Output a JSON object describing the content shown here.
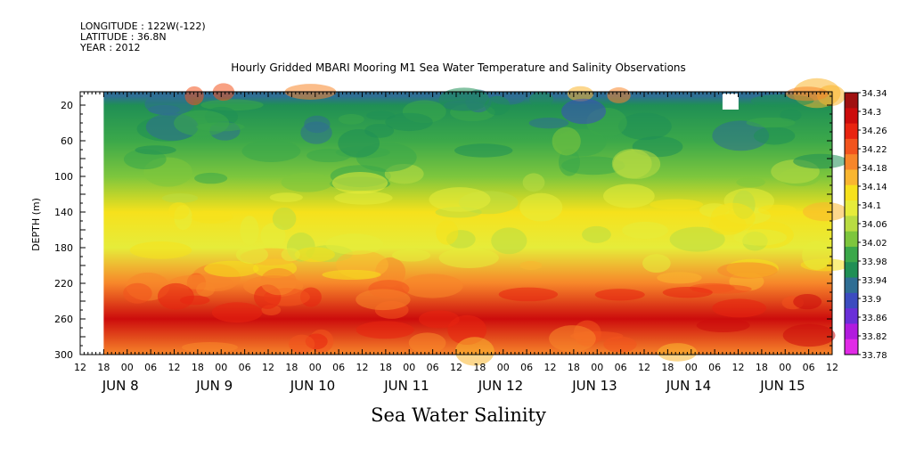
{
  "meta": {
    "longitude": "LONGITUDE : 122W(-122)",
    "latitude": "LATITUDE : 36.8N",
    "year": "YEAR : 2012"
  },
  "chart_data": {
    "type": "heatmap",
    "title": "Hourly Gridded MBARI Mooring M1 Sea Water Temperature and Salinity Observations",
    "bottom_title": "Sea Water Salinity",
    "ylabel": "DEPTH (m)",
    "ylim": [
      300,
      5
    ],
    "y_ticks": [
      20,
      60,
      100,
      140,
      180,
      220,
      260,
      300
    ],
    "x_range_hours": "Jun 7 12:00 to Jun 15 12:00, 2012",
    "x_hour_ticks": [
      "12",
      "18",
      "00",
      "06",
      "12",
      "18",
      "00",
      "06",
      "12",
      "18",
      "00",
      "06",
      "12",
      "18",
      "00",
      "06",
      "12",
      "18",
      "00",
      "06",
      "12",
      "18",
      "00",
      "06",
      "12",
      "18",
      "00",
      "06",
      "12",
      "18",
      "00",
      "06",
      "12"
    ],
    "x_day_labels": [
      "JUN  8",
      "JUN  9",
      "JUN 10",
      "JUN 11",
      "JUN 12",
      "JUN 13",
      "JUN 14",
      "JUN 15"
    ],
    "colorbar": {
      "levels": [
        "34.34",
        "34.3",
        "34.26",
        "34.22",
        "34.18",
        "34.14",
        "34.1",
        "34.06",
        "34.02",
        "33.98",
        "33.94",
        "33.9",
        "33.86",
        "33.82",
        "33.78"
      ],
      "colors": [
        "#a01010",
        "#cc0c0c",
        "#e82410",
        "#f2541e",
        "#f7862a",
        "#f9b630",
        "#f6e11c",
        "#e6ec3a",
        "#b9dc42",
        "#7dc63d",
        "#3ba84a",
        "#1f8f55",
        "#2f6e94",
        "#3c4cc0",
        "#6a2fd8",
        "#b11bde",
        "#e12ae6"
      ],
      "range": [
        33.78,
        34.34
      ]
    },
    "depth_profile": [
      {
        "depth": 10,
        "salinity": 33.94
      },
      {
        "depth": 20,
        "salinity": 33.95
      },
      {
        "depth": 60,
        "salinity": 33.98
      },
      {
        "depth": 100,
        "salinity": 34.03
      },
      {
        "depth": 140,
        "salinity": 34.11
      },
      {
        "depth": 180,
        "salinity": 34.09
      },
      {
        "depth": 220,
        "salinity": 34.2
      },
      {
        "depth": 260,
        "salinity": 34.28
      },
      {
        "depth": 300,
        "salinity": 34.2
      }
    ]
  }
}
